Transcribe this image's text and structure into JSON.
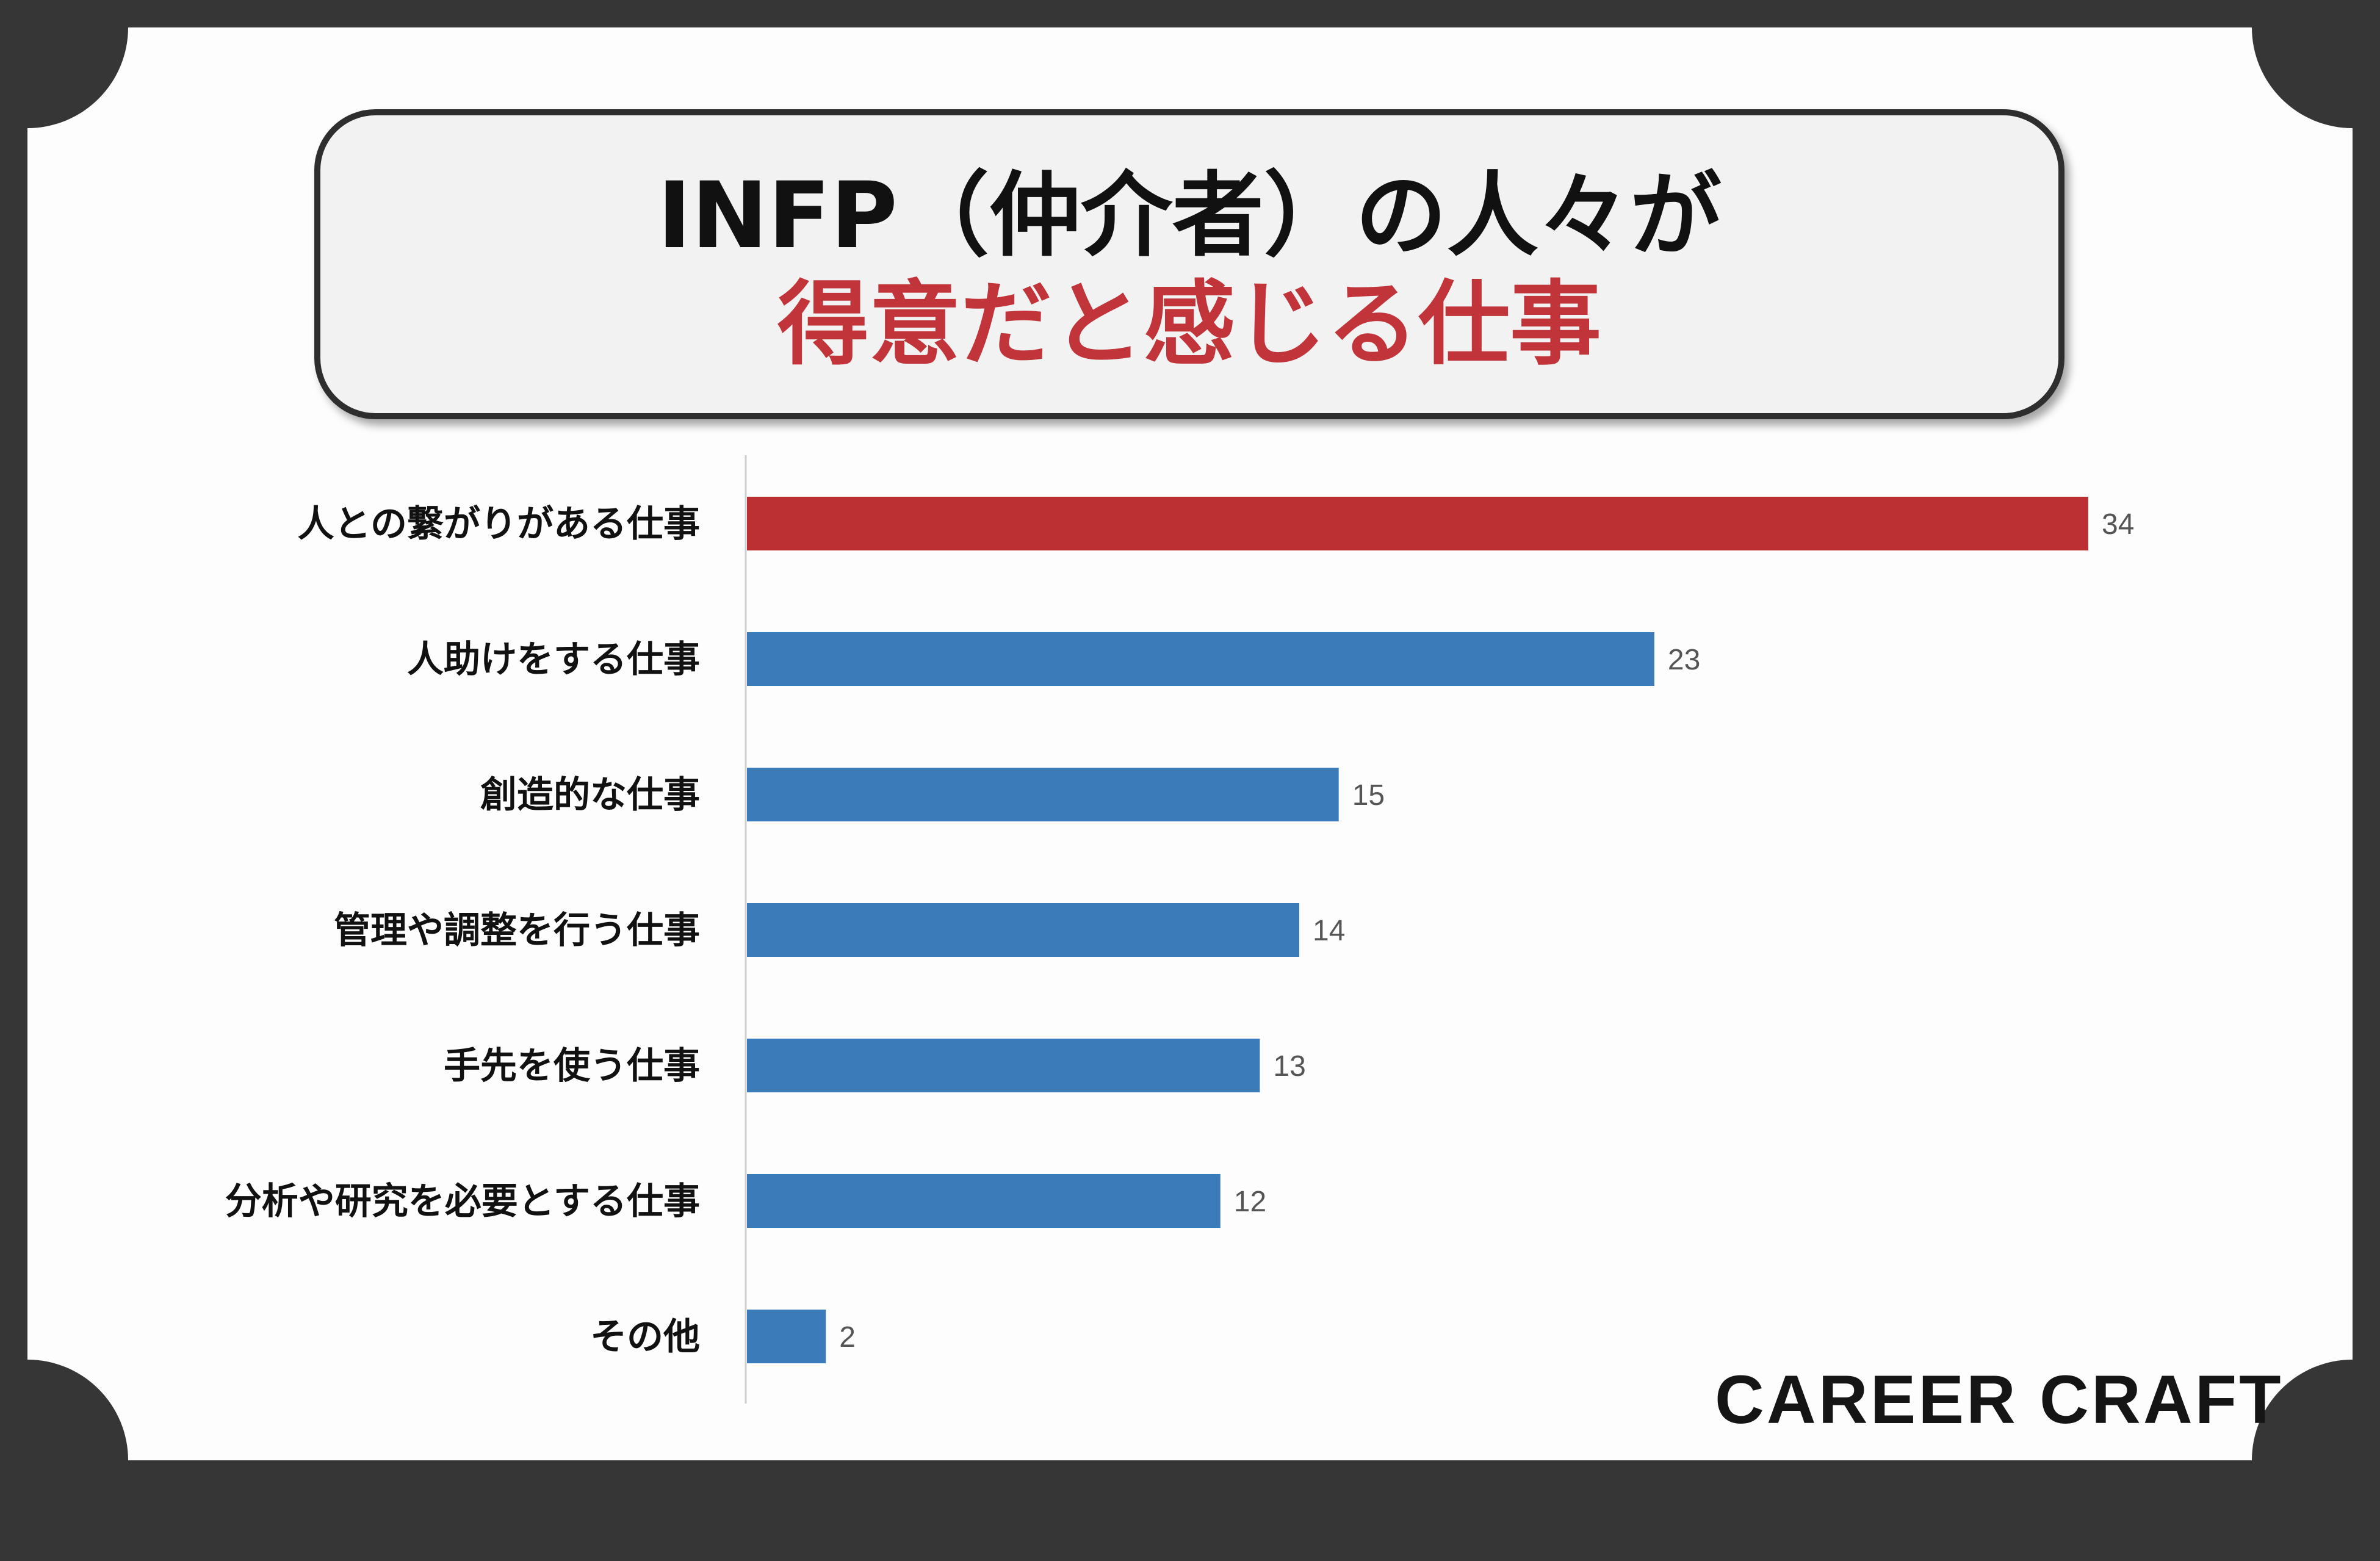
{
  "title": {
    "line1": "INFP（仲介者）の人々が",
    "line2": "得意だと感じる仕事"
  },
  "logo": "CAREER CRAFT",
  "colors": {
    "highlight": "#bc3034",
    "bar": "#3b7bba",
    "title_accent": "#c0343a",
    "frame": "#363636"
  },
  "chart_data": {
    "type": "bar",
    "orientation": "horizontal",
    "categories": [
      "人との繋がりがある仕事",
      "人助けをする仕事",
      "創造的な仕事",
      "管理や調整を行う仕事",
      "手先を使う仕事",
      "分析や研究を必要とする仕事",
      "その他"
    ],
    "values": [
      34,
      23,
      15,
      14,
      13,
      12,
      2
    ],
    "highlight_index": 0,
    "data_labels": [
      "34",
      "23",
      "15",
      "14",
      "13",
      "12",
      "2"
    ],
    "title": "",
    "xlabel": "",
    "ylabel": "",
    "xlim": [
      0,
      34
    ],
    "grid": false
  }
}
